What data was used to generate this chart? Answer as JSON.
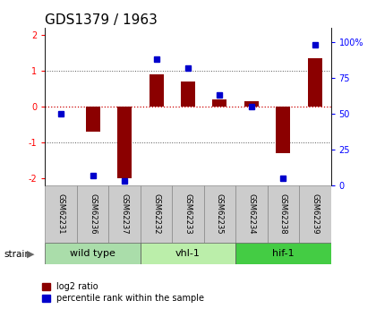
{
  "title": "GDS1379 / 1963",
  "samples": [
    "GSM62231",
    "GSM62236",
    "GSM62237",
    "GSM62232",
    "GSM62233",
    "GSM62235",
    "GSM62234",
    "GSM62238",
    "GSM62239"
  ],
  "log2_ratio": [
    0.0,
    -0.7,
    -2.0,
    0.9,
    0.7,
    0.2,
    0.15,
    -1.3,
    1.35
  ],
  "percentile": [
    50,
    7,
    3,
    88,
    82,
    63,
    55,
    5,
    98
  ],
  "groups": [
    {
      "label": "wild type",
      "start": 0,
      "end": 3,
      "color": "#aaddaa"
    },
    {
      "label": "vhl-1",
      "start": 3,
      "end": 6,
      "color": "#bbeeaa"
    },
    {
      "label": "hif-1",
      "start": 6,
      "end": 9,
      "color": "#44cc44"
    }
  ],
  "ylim_left": [
    -2.2,
    2.2
  ],
  "ylim_right": [
    0,
    110
  ],
  "bar_color": "#8b0000",
  "dot_color": "#0000cc",
  "grid_color": "#555555",
  "zero_line_color": "#cc0000",
  "background_label": "#cccccc",
  "title_fontsize": 11,
  "tick_fontsize": 7,
  "sample_fontsize": 6
}
